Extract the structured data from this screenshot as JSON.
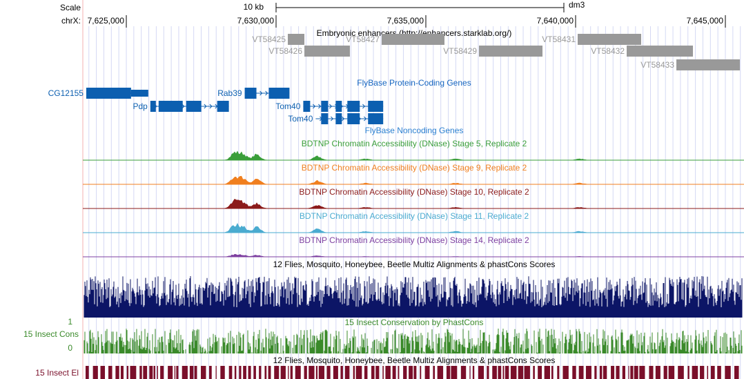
{
  "header": {
    "scale_label": "Scale",
    "chrom_label": "chrX:",
    "scale_bar": "10 kb",
    "assembly": "dm3"
  },
  "ruler": {
    "xlim": [
      7623548,
      7645622
    ],
    "ticks": [
      {
        "value": 7625000,
        "label": "7,625,000"
      },
      {
        "value": 7630000,
        "label": "7,630,000"
      },
      {
        "value": 7635000,
        "label": "7,635,000"
      },
      {
        "value": 7640000,
        "label": "7,640,000"
      },
      {
        "value": 7645000,
        "label": "7,645,000"
      }
    ]
  },
  "enhancers": {
    "title": "Embryonic enhancers (http://enhancers.starklab.org/)",
    "features": [
      {
        "name": "VT58425",
        "start": 7630392,
        "end": 7630945,
        "row": 0
      },
      {
        "name": "VT58426",
        "start": 7630945,
        "end": 7632465,
        "row": 1
      },
      {
        "name": "VT58427",
        "start": 7633525,
        "end": 7635622,
        "row": 0
      },
      {
        "name": "VT58429",
        "start": 7636774,
        "end": 7638894,
        "row": 1
      },
      {
        "name": "VT58431",
        "start": 7640069,
        "end": 7642189,
        "row": 0
      },
      {
        "name": "VT58432",
        "start": 7641705,
        "end": 7643917,
        "row": 1
      },
      {
        "name": "VT58433",
        "start": 7643364,
        "end": 7645484,
        "row": 2
      }
    ]
  },
  "genes": {
    "title": "FlyBase Protein-Coding Genes",
    "features": [
      {
        "name": "CG12155",
        "row": 0,
        "start": 7623663,
        "end": 7625733,
        "exons": [
          [
            7623663,
            7625158
          ],
          [
            7625158,
            7625733
          ]
        ]
      },
      {
        "name": "Pdp",
        "row": 1,
        "start": 7625802,
        "end": 7628424,
        "exons": [
          [
            7625802,
            7625986
          ],
          [
            7626078,
            7626883
          ],
          [
            7626998,
            7627504
          ],
          [
            7628033,
            7628424
          ]
        ]
      },
      {
        "name": "Rab39",
        "row": 0,
        "start": 7628953,
        "end": 7630448,
        "exons": [
          [
            7628953,
            7629344
          ],
          [
            7629758,
            7630448
          ]
        ]
      },
      {
        "name": "Tom40",
        "row": 1,
        "start": 7630908,
        "end": 7633576,
        "exons": [
          [
            7630908,
            7631138
          ],
          [
            7631506,
            7631736
          ],
          [
            7631989,
            7632196
          ],
          [
            7632380,
            7632794
          ],
          [
            7633070,
            7633576
          ]
        ]
      },
      {
        "name": "Tom40",
        "row": 2,
        "start": 7631322,
        "end": 7633576,
        "exons": [
          [
            7631506,
            7631736
          ],
          [
            7631989,
            7632196
          ],
          [
            7632380,
            7632794
          ],
          [
            7633070,
            7633576
          ]
        ]
      }
    ]
  },
  "noncoding": {
    "title": "FlyBase Noncoding Genes"
  },
  "dnase": [
    {
      "title": "BDTNP Chromatin Accessibility (DNase) Stage 5, Replicate 2",
      "color": "#3a9e3a"
    },
    {
      "title": "BDTNP Chromatin Accessibility (DNase) Stage 9, Replicate 2",
      "color": "#f07f1f"
    },
    {
      "title": "BDTNP Chromatin Accessibility (DNase) Stage 10, Replicate 2",
      "color": "#8b1a1a"
    },
    {
      "title": "BDTNP Chromatin Accessibility (DNase) Stage 11, Replicate 2",
      "color": "#4aabd0"
    },
    {
      "title": "BDTNP Chromatin Accessibility (DNase) Stage 14, Replicate 2",
      "color": "#7d3fa0"
    }
  ],
  "multiz": {
    "title": "12 Flies, Mosquito, Honeybee, Beetle Multiz Alignments & phastCons Scores",
    "color": "#0c1566"
  },
  "cons": {
    "title": "15 Insect Conservation by PhastCons",
    "side_label": "15 Insect Cons",
    "ymax": 1,
    "ymin": 0,
    "color": "#3a8a2a"
  },
  "elements": {
    "title": "12 Flies, Mosquito, Honeybee, Beetle Multiz Alignments & phastCons Scores",
    "side_label": "15 Insect El",
    "color": "#7a0f2a"
  }
}
